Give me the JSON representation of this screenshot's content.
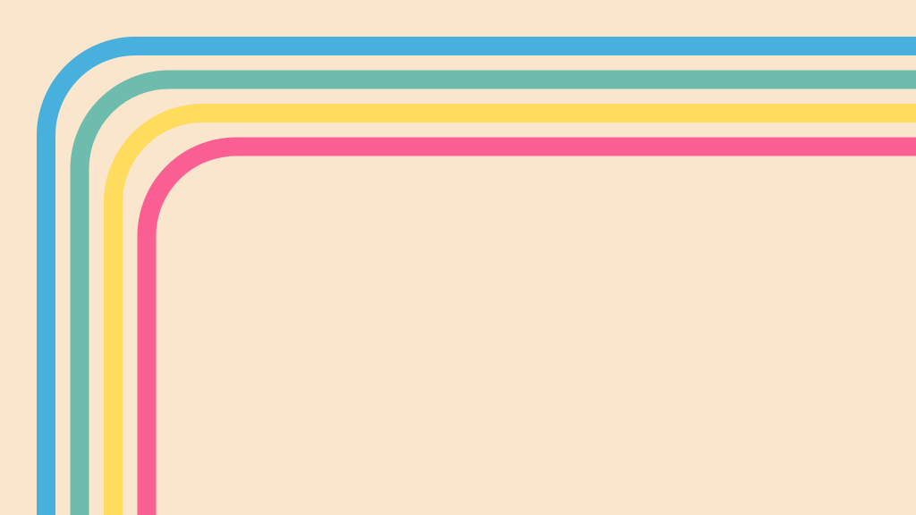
{
  "background": {
    "color": "#fae6cd"
  },
  "stripes": [
    {
      "name": "blue",
      "color": "#48b0dc"
    },
    {
      "name": "teal",
      "color": "#6ebcae"
    },
    {
      "name": "yellow",
      "color": "#ffdc5e"
    },
    {
      "name": "pink",
      "color": "#fa5f93"
    }
  ]
}
